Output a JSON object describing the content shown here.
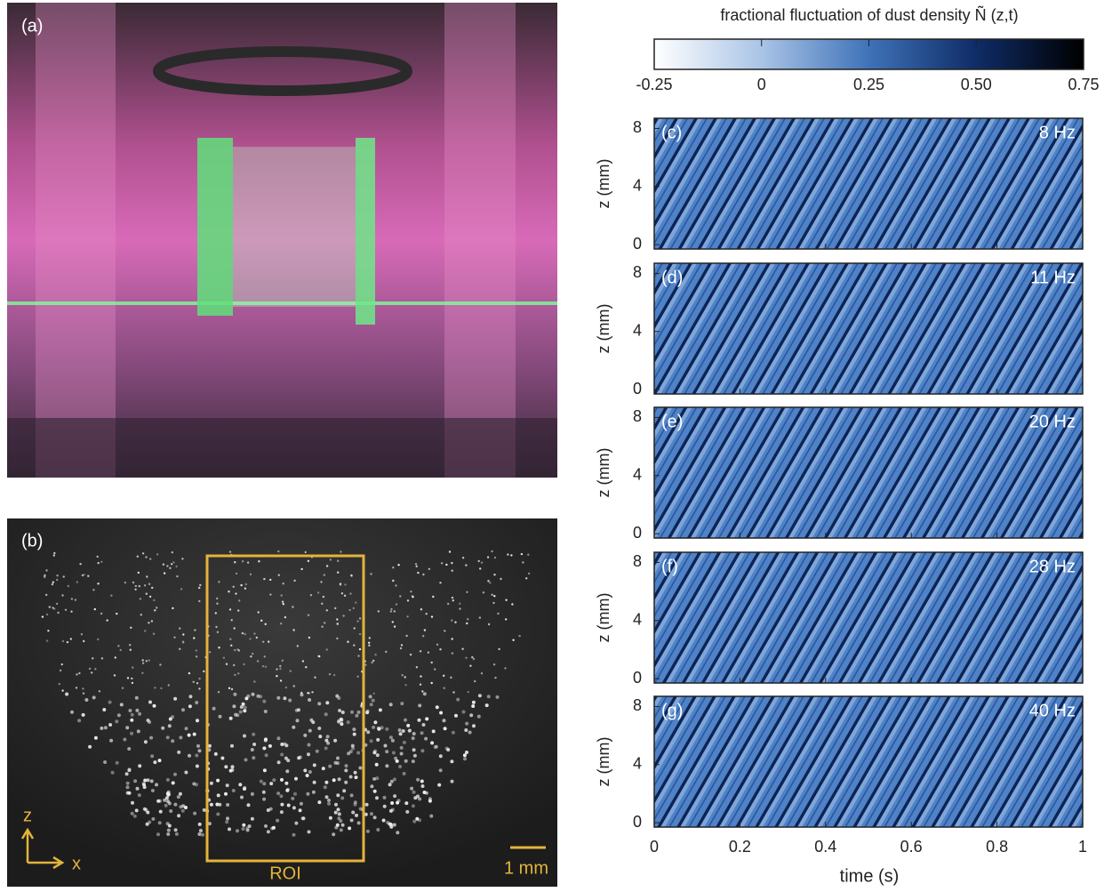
{
  "panel_a": {
    "label": "(a)"
  },
  "panel_b": {
    "label": "(b)",
    "axis_z": "z",
    "axis_x": "x",
    "roi": "ROI",
    "scale": "1 mm"
  },
  "colorbar": {
    "title": "fractional fluctuation of dust density Ñ (z,t)",
    "lim": [
      -0.25,
      0.75
    ],
    "ticks": [
      -0.25,
      0,
      0.25,
      {
        "value": 0.5,
        "label": "0.50"
      },
      0.75
    ]
  },
  "panels": [
    {
      "label": "(c)",
      "freq": "8 Hz"
    },
    {
      "label": "(d)",
      "freq": "11 Hz"
    },
    {
      "label": "(e)",
      "freq": "20 Hz"
    },
    {
      "label": "(f)",
      "freq": "28 Hz"
    },
    {
      "label": "(g)",
      "freq": "40 Hz"
    }
  ],
  "ylabel": "z (mm)",
  "ylim": [
    -0.3,
    8.7
  ],
  "yticks": [
    0,
    4,
    8
  ],
  "xlabel": "time (s)",
  "xlim": [
    0,
    1
  ],
  "xticks": [
    0,
    0.2,
    0.4,
    0.6,
    0.8,
    1
  ]
}
